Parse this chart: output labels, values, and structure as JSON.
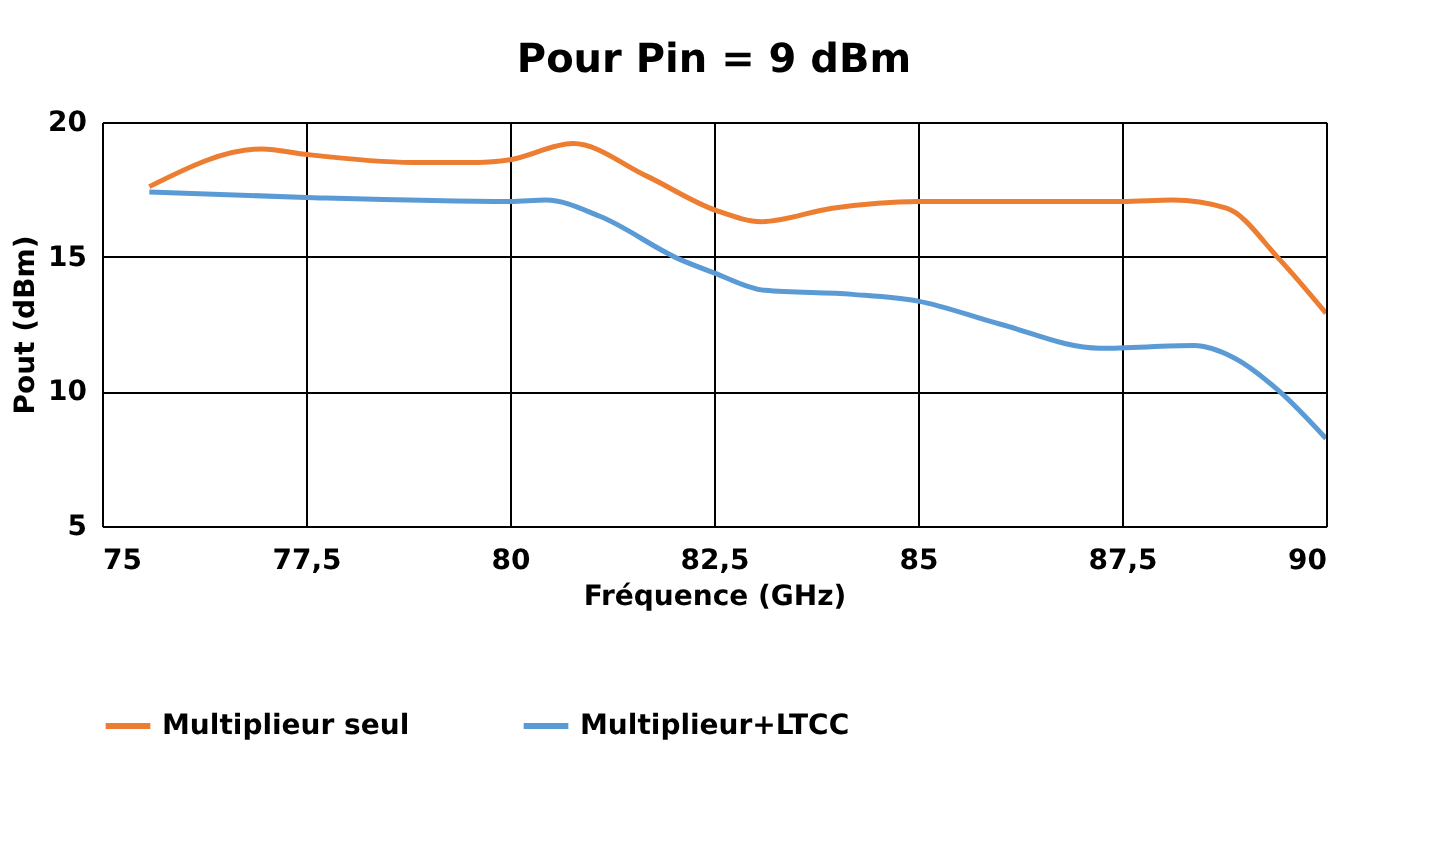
{
  "chart_data": {
    "type": "line",
    "title": "Pour Pin = 9 dBm",
    "xlabel": "Fréquence (GHz)",
    "ylabel": "Pout (dBm)",
    "xlim": [
      75,
      90
    ],
    "xticks": [
      75,
      {
        "value": 77.5,
        "label": "77,5"
      },
      80,
      {
        "value": 82.5,
        "label": "82,5"
      },
      85,
      {
        "value": 87.5,
        "label": "87,5"
      },
      90
    ],
    "ylim": [
      5,
      20
    ],
    "yticks": [
      5,
      10,
      15,
      20
    ],
    "grid": true,
    "legend": "bottom",
    "marker": "none",
    "line_style": "solid",
    "series": [
      {
        "name": "Multiplieur seul",
        "color": "#ed7d31",
        "x": [
          75.58,
          76.96,
          77.49,
          78.8,
          79.6,
          80,
          80.77,
          81.67,
          82.54,
          83.08,
          83.95,
          85,
          87.5,
          88.12,
          88.78,
          89.43,
          90
        ],
        "values": [
          17.6,
          19.0,
          18.8,
          18.5,
          18.5,
          18.6,
          19.2,
          18.0,
          16.7,
          16.3,
          16.8,
          17.05,
          17.05,
          17.1,
          16.8,
          14.9,
          12.9
        ]
      },
      {
        "name": "Multiplieur+LTCC",
        "color": "#5b9bd5",
        "x": [
          75.58,
          77.5,
          80,
          80.44,
          81.1,
          82.08,
          82.5,
          83.12,
          84.2,
          85,
          86.0,
          87.23,
          88.38,
          88.87,
          89.43,
          90
        ],
        "values": [
          17.4,
          17.2,
          17.05,
          17.1,
          16.5,
          14.9,
          14.4,
          13.75,
          13.6,
          13.35,
          12.5,
          11.6,
          11.7,
          11.25,
          10.0,
          8.25
        ]
      }
    ]
  }
}
